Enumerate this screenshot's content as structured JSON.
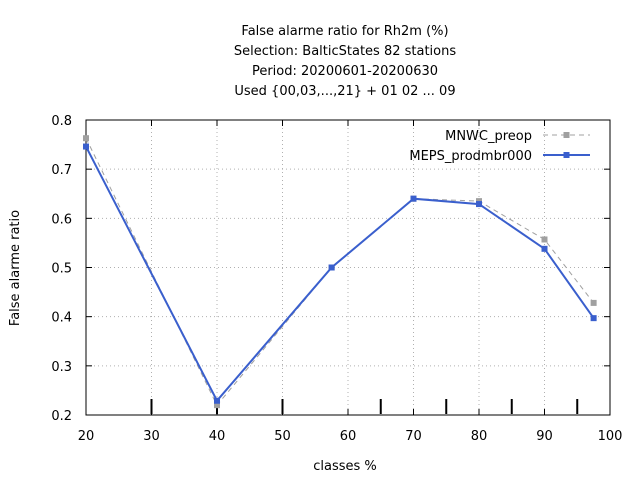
{
  "chart_data": {
    "type": "line",
    "title_lines": [
      "False alarme ratio  for Rh2m (%)",
      "Selection: BalticStates     82 stations",
      "Period: 20200601-20200630",
      "Used {00,03,...,21} + 01 02 ... 09"
    ],
    "xlabel": "classes %",
    "ylabel": "False alarme ratio",
    "xlim": [
      20,
      100
    ],
    "ylim": [
      0.2,
      0.8
    ],
    "xticks": [
      20,
      30,
      40,
      50,
      60,
      70,
      80,
      90,
      100
    ],
    "yticks": [
      0.2,
      0.3,
      0.4,
      0.5,
      0.6,
      0.7,
      0.8
    ],
    "class_marks": [
      30,
      40,
      50,
      65,
      75,
      85,
      95
    ],
    "grid": true,
    "legend_position": "top-right",
    "series": [
      {
        "name": "MNWC_preop",
        "color": "#a0a0a0",
        "dashed": true,
        "x": [
          20,
          40,
          57.5,
          70,
          80,
          90,
          97.5
        ],
        "y": [
          0.763,
          0.22,
          0.5,
          0.64,
          0.635,
          0.557,
          0.428
        ]
      },
      {
        "name": "MEPS_prodmbr000",
        "color": "#3a5fcd",
        "dashed": false,
        "x": [
          20,
          40,
          57.5,
          70,
          80,
          90,
          97.5
        ],
        "y": [
          0.746,
          0.229,
          0.5,
          0.64,
          0.629,
          0.538,
          0.397
        ]
      }
    ]
  }
}
